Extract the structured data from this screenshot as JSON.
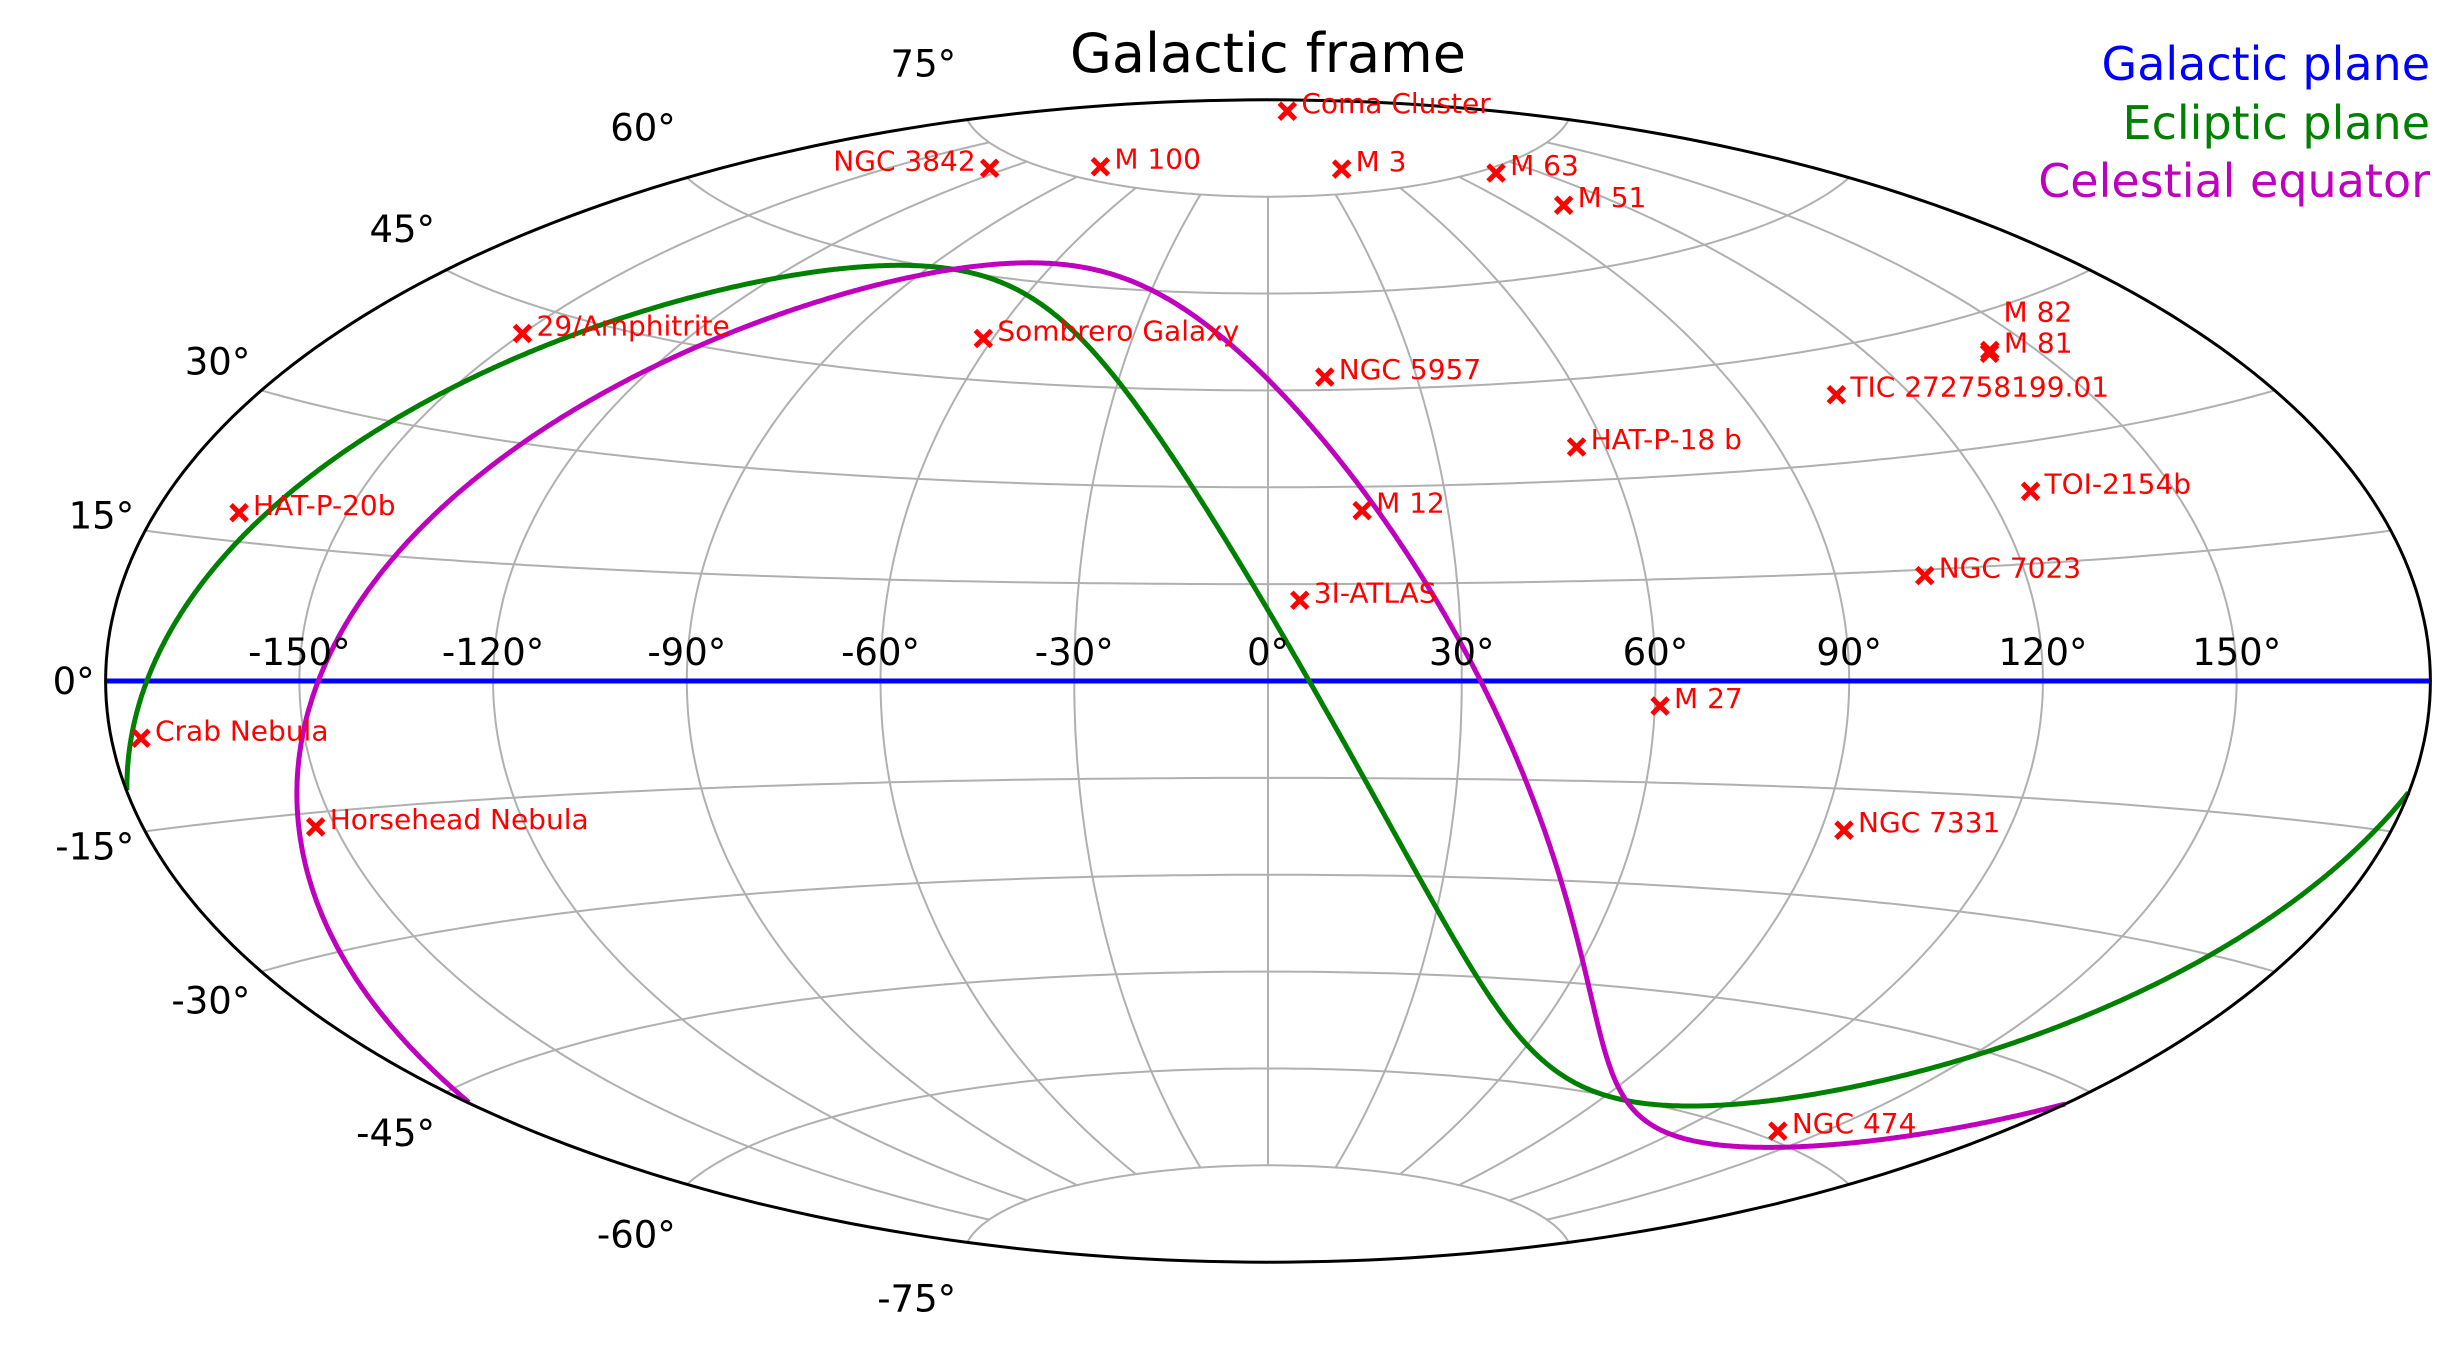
{
  "chart_data": {
    "type": "scatter",
    "projection": "aitoff",
    "title": "Galactic frame",
    "grid": true,
    "legend_placement": "top-right",
    "lon_ticks": [
      -150,
      -120,
      -90,
      -60,
      -30,
      0,
      30,
      60,
      90,
      120,
      150
    ],
    "lon_tick_labels": [
      "-150°",
      "-120°",
      "-90°",
      "-60°",
      "-30°",
      "0°",
      "30°",
      "60°",
      "90°",
      "120°",
      "150°"
    ],
    "lat_ticks": [
      75,
      60,
      45,
      30,
      15,
      0,
      -15,
      -30,
      -45,
      -60,
      -75
    ],
    "lat_tick_labels": [
      "75°",
      "60°",
      "45°",
      "30°",
      "15°",
      "0°",
      "-15°",
      "-30°",
      "-45°",
      "-60°",
      "-75°"
    ],
    "lines": [
      {
        "name": "Galactic plane",
        "color": "#0000ff"
      },
      {
        "name": "Ecliptic plane",
        "color": "#008000"
      },
      {
        "name": "Celestial equator",
        "color": "#bf00bf"
      }
    ],
    "marker_color": "#ff0000",
    "objects": [
      {
        "name": "Coma Cluster",
        "lon": 58.1,
        "lat": 88.0
      },
      {
        "name": "NGC 3842",
        "lon": -125.2,
        "lat": 73.0
      },
      {
        "name": "M 100",
        "lon": -88.9,
        "lat": 76.9
      },
      {
        "name": "M 3",
        "lon": 42.2,
        "lat": 78.7
      },
      {
        "name": "M 63",
        "lon": 106.0,
        "lat": 74.3
      },
      {
        "name": "M 51",
        "lon": 104.9,
        "lat": 68.6
      },
      {
        "name": "29/Amphitrite",
        "lon": -150.0,
        "lat": 42.0
      },
      {
        "name": "Sombrero Galaxy",
        "lon": -62.0,
        "lat": 51.1
      },
      {
        "name": "NGC 5957",
        "lon": 11.5,
        "lat": 47.0
      },
      {
        "name": "M 81",
        "lon": 142.1,
        "lat": 40.9
      },
      {
        "name": "M 82",
        "lon": 141.4,
        "lat": 40.6
      },
      {
        "name": "TIC 272758199.01",
        "lon": 107.0,
        "lat": 39.0
      },
      {
        "name": "HAT-P-18 b",
        "lon": 55.0,
        "lat": 35.0
      },
      {
        "name": "HAT-P-20b",
        "lon": -167.0,
        "lat": 18.0
      },
      {
        "name": "M 12",
        "lon": 15.7,
        "lat": 26.3
      },
      {
        "name": "TOI-2154b",
        "lon": 127.0,
        "lat": 24.0
      },
      {
        "name": "NGC 7023",
        "lon": 104.1,
        "lat": 14.2
      },
      {
        "name": "3I-ATLAS",
        "lon": 5.0,
        "lat": 12.5
      },
      {
        "name": "M 27",
        "lon": 60.8,
        "lat": -3.7
      },
      {
        "name": "Crab Nebula",
        "lon": -175.4,
        "lat": -5.8
      },
      {
        "name": "Horsehead Nebula",
        "lon": -153.1,
        "lat": -16.6
      },
      {
        "name": "NGC 7331",
        "lon": 93.7,
        "lat": -20.7
      },
      {
        "name": "NGC 474",
        "lon": 141.0,
        "lat": -59.0
      }
    ]
  }
}
